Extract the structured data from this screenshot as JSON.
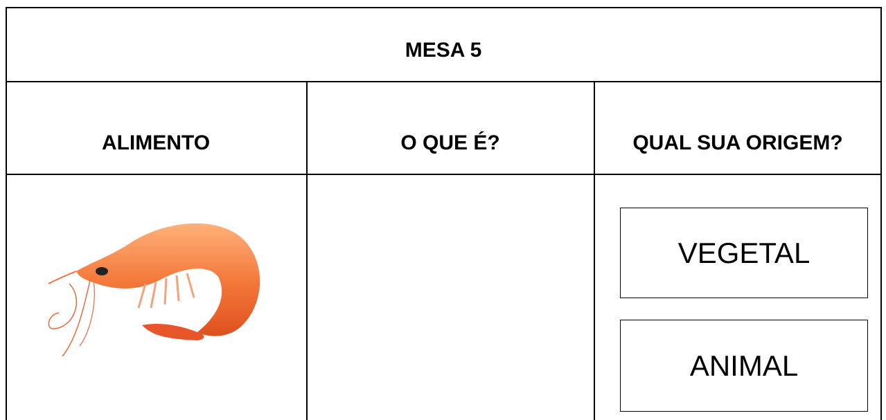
{
  "table": {
    "title": "MESA 5",
    "headers": [
      "ALIMENTO",
      "O QUE É?",
      "QUAL SUA ORIGEM?"
    ],
    "options": [
      "VEGETAL",
      "ANIMAL"
    ]
  }
}
